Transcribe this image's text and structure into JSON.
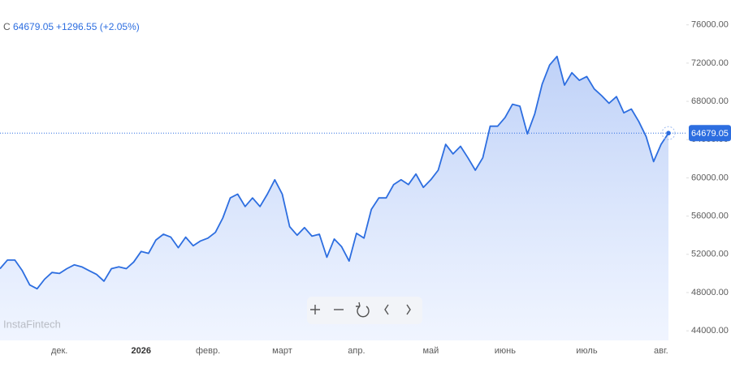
{
  "chart_data": {
    "type": "line",
    "ticker_label": "C",
    "change_label": "+1296.55 (+2.05%)",
    "watermark": "InstaFintech",
    "categories": [
      null,
      null,
      null,
      null,
      null,
      null,
      null,
      null,
      "дек.",
      null,
      null,
      null,
      null,
      null,
      null,
      null,
      null,
      null,
      null,
      "2026",
      null,
      null,
      null,
      null,
      null,
      null,
      null,
      null,
      "февр.",
      null,
      null,
      null,
      null,
      null,
      null,
      null,
      null,
      null,
      "март",
      null,
      null,
      null,
      null,
      null,
      null,
      null,
      null,
      null,
      "апр.",
      null,
      null,
      null,
      null,
      null,
      null,
      null,
      null,
      null,
      "май",
      null,
      null,
      null,
      null,
      null,
      null,
      null,
      null,
      null,
      "июнь",
      null,
      null,
      null,
      null,
      null,
      null,
      null,
      null,
      null,
      null,
      "июль",
      null,
      null,
      null,
      null,
      null,
      null,
      null,
      null,
      null,
      "авг.",
      null
    ],
    "values": [
      50500,
      51400,
      51400,
      50300,
      48800,
      48400,
      49400,
      50100,
      50000,
      50500,
      50900,
      50700,
      50300,
      49900,
      49200,
      50500,
      50700,
      50500,
      51200,
      52300,
      52100,
      53500,
      54100,
      53800,
      52700,
      53800,
      52900,
      53400,
      53700,
      54300,
      55800,
      57900,
      58300,
      57000,
      57900,
      57000,
      58300,
      59800,
      58300,
      54900,
      54000,
      54800,
      53900,
      54100,
      51700,
      53600,
      52800,
      51300,
      54200,
      53700,
      56700,
      57900,
      57900,
      59300,
      59800,
      59300,
      60400,
      59000,
      59800,
      60800,
      63500,
      62500,
      63300,
      62100,
      60800,
      62100,
      65400,
      65400,
      66300,
      67700,
      67500,
      64600,
      66700,
      69800,
      71800,
      72700,
      69700,
      71000,
      70200,
      70600,
      69300,
      68600,
      67800,
      68500,
      66800,
      67200,
      65900,
      64300,
      61700,
      63500,
      64679.05
    ],
    "color": "#2d6ee0",
    "ylim": [
      43000,
      78600
    ],
    "yticks": [
      {
        "value": 44000,
        "label": "44000.00"
      },
      {
        "value": 48000,
        "label": "48000.00"
      },
      {
        "value": 52000,
        "label": "52000.00"
      },
      {
        "value": 56000,
        "label": "56000.00"
      },
      {
        "value": 60000,
        "label": "60000.00"
      },
      {
        "value": 64000,
        "label": "64000.00"
      },
      {
        "value": 68000,
        "label": "68000.00"
      },
      {
        "value": 72000,
        "label": "72000.00"
      },
      {
        "value": 76000,
        "label": "76000.00"
      }
    ],
    "grid": false
  }
}
